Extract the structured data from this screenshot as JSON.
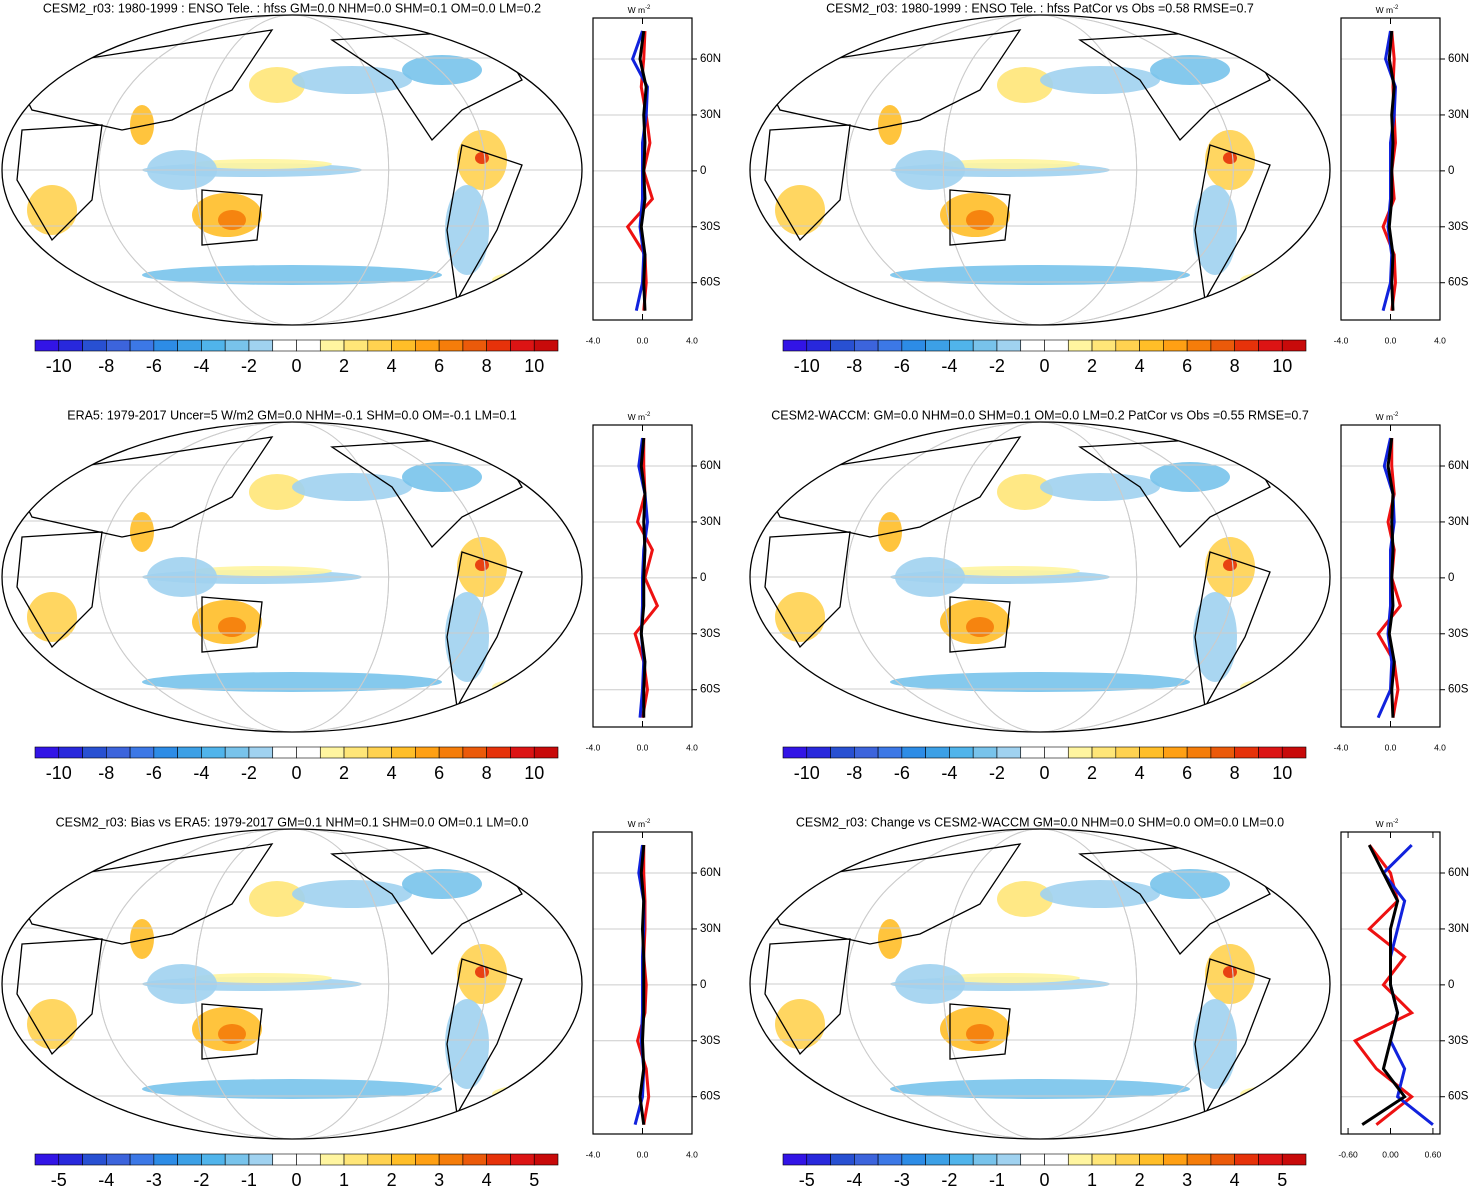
{
  "colorbars": {
    "wide": {
      "lim": [
        -11,
        11
      ],
      "labels": [
        -10,
        -8,
        -6,
        -4,
        -2,
        0,
        2,
        4,
        6,
        8,
        10
      ]
    },
    "narrow": {
      "lim": [
        -5.5,
        5.5
      ],
      "labels": [
        -5,
        -4,
        -3,
        -2,
        -1,
        0,
        1,
        2,
        3,
        4,
        5
      ]
    },
    "colors": [
      "#3214e6",
      "#2828dc",
      "#2850d2",
      "#3c64dc",
      "#3c78e6",
      "#2d8ce6",
      "#3ca0e6",
      "#50b4eb",
      "#78c3eb",
      "#a0d2f0",
      "#ffffff",
      "#ffffff",
      "#fff5a0",
      "#ffe678",
      "#ffd250",
      "#ffbe28",
      "#ffa014",
      "#f57d0a",
      "#eb5a0a",
      "#e6320a",
      "#dc1414",
      "#c80a0a"
    ]
  },
  "zonal_units": "W m",
  "zonal_units_sup": "-2",
  "panels": [
    {
      "title": "CESM2_r03: 1980-1999 : ENSO Tele. : hfss GM=0.0 NHM=0.0 SHM=0.1 OM=0.0 LM=0.2",
      "colorbar": "wide",
      "zonal": {
        "xlim": [
          -4,
          4
        ],
        "xticks": [
          {
            "value": -4,
            "label": "-4.0"
          },
          {
            "value": 0,
            "label": "0.0"
          },
          {
            "value": 4,
            "label": "4.0"
          }
        ],
        "ylim": [
          -80,
          82
        ],
        "yticks": [
          {
            "value": 60,
            "label": "60N"
          },
          {
            "value": 30,
            "label": "30N"
          },
          0,
          {
            "value": -30,
            "label": "30S"
          },
          {
            "value": -60,
            "label": "60S"
          }
        ],
        "lat": [
          -75,
          -60,
          -45,
          -30,
          -15,
          0,
          15,
          30,
          45,
          60,
          75
        ],
        "series": [
          {
            "color": "#ee1111",
            "values": [
              0.1,
              0.3,
              0.2,
              -1.2,
              0.8,
              0.1,
              0.6,
              0.3,
              -0.1,
              0.1,
              0.2
            ]
          },
          {
            "color": "#1122dd",
            "values": [
              -0.5,
              0.0,
              0.1,
              -0.2,
              0.0,
              0.0,
              0.0,
              0.3,
              0.4,
              -0.8,
              0.0
            ]
          },
          {
            "color": "#000000",
            "values": [
              0.2,
              0.1,
              0.2,
              -0.1,
              0.2,
              0.1,
              0.2,
              0.1,
              0.3,
              -0.2,
              0.1
            ]
          }
        ]
      }
    },
    {
      "title": "CESM2_r03: 1980-1999 : ENSO Tele. : hfss PatCor vs Obs =0.58 RMSE=0.7",
      "colorbar": "wide",
      "zonal": {
        "xlim": [
          -4,
          4
        ],
        "xticks": [
          {
            "value": -4,
            "label": "-4.0"
          },
          {
            "value": 0,
            "label": "0.0"
          },
          {
            "value": 4,
            "label": "4.0"
          }
        ],
        "ylim": [
          -80,
          82
        ],
        "yticks": [
          {
            "value": 60,
            "label": "60N"
          },
          {
            "value": 30,
            "label": "30N"
          },
          0,
          {
            "value": -30,
            "label": "30S"
          },
          {
            "value": -60,
            "label": "60S"
          }
        ],
        "lat": [
          -75,
          -60,
          -45,
          -30,
          -15,
          0,
          15,
          30,
          45,
          60,
          75
        ],
        "series": [
          {
            "color": "#ee1111",
            "values": [
              0.1,
              0.4,
              0.3,
              -0.6,
              0.3,
              0.1,
              0.4,
              0.3,
              0.2,
              0.3,
              0.1
            ]
          },
          {
            "color": "#1122dd",
            "values": [
              -0.6,
              0.0,
              0.1,
              -0.2,
              0.0,
              0.0,
              0.0,
              0.3,
              0.4,
              -0.4,
              0.0
            ]
          },
          {
            "color": "#000000",
            "values": [
              0.2,
              0.1,
              0.2,
              -0.1,
              0.1,
              0.1,
              0.2,
              0.1,
              0.3,
              -0.1,
              0.1
            ]
          }
        ]
      }
    },
    {
      "title": "ERA5: 1979-2017 Uncer=5 W/m2 GM=0.0 NHM=-0.1 SHM=0.0 OM=-0.1 LM=0.1",
      "colorbar": "wide",
      "zonal": {
        "xlim": [
          -4,
          4
        ],
        "xticks": [
          {
            "value": -4,
            "label": "-4.0"
          },
          {
            "value": 0,
            "label": "0.0"
          },
          {
            "value": 4,
            "label": "4.0"
          }
        ],
        "ylim": [
          -80,
          82
        ],
        "yticks": [
          {
            "value": 60,
            "label": "60N"
          },
          {
            "value": 30,
            "label": "30N"
          },
          0,
          {
            "value": -30,
            "label": "30S"
          },
          {
            "value": -60,
            "label": "60S"
          }
        ],
        "lat": [
          -75,
          -60,
          -45,
          -30,
          -15,
          0,
          15,
          30,
          45,
          60,
          75
        ],
        "series": [
          {
            "color": "#ee1111",
            "values": [
              0.0,
              0.4,
              0.1,
              -0.6,
              1.2,
              0.2,
              0.8,
              -0.4,
              0.2,
              0.1,
              0.1
            ]
          },
          {
            "color": "#1122dd",
            "values": [
              -0.2,
              0.0,
              0.1,
              -0.1,
              0.0,
              0.0,
              0.1,
              0.4,
              0.2,
              -0.3,
              0.0
            ]
          },
          {
            "color": "#000000",
            "values": [
              0.1,
              0.1,
              0.2,
              -0.1,
              0.1,
              0.1,
              0.2,
              0.1,
              0.2,
              -0.1,
              0.1
            ]
          }
        ]
      }
    },
    {
      "title": "CESM2-WACCM: GM=0.0 NHM=0.0 SHM=0.1 OM=0.0 LM=0.2 PatCor vs Obs =0.55 RMSE=0.7",
      "colorbar": "wide",
      "zonal": {
        "xlim": [
          -4,
          4
        ],
        "xticks": [
          {
            "value": -4,
            "label": "-4.0"
          },
          {
            "value": 0,
            "label": "0.0"
          },
          {
            "value": 4,
            "label": "4.0"
          }
        ],
        "ylim": [
          -80,
          82
        ],
        "yticks": [
          {
            "value": 60,
            "label": "60N"
          },
          {
            "value": 30,
            "label": "30N"
          },
          0,
          {
            "value": -30,
            "label": "30S"
          },
          {
            "value": -60,
            "label": "60S"
          }
        ],
        "lat": [
          -75,
          -60,
          -45,
          -30,
          -15,
          0,
          15,
          30,
          45,
          60,
          75
        ],
        "series": [
          {
            "color": "#ee1111",
            "values": [
              0.2,
              0.6,
              0.3,
              -1.0,
              0.8,
              0.1,
              0.3,
              -0.2,
              0.3,
              0.1,
              0.1
            ]
          },
          {
            "color": "#1122dd",
            "values": [
              -1.0,
              0.0,
              0.1,
              -0.2,
              0.0,
              0.0,
              0.0,
              0.3,
              0.2,
              -0.5,
              0.0
            ]
          },
          {
            "color": "#000000",
            "values": [
              0.2,
              0.1,
              0.3,
              -0.1,
              0.2,
              0.1,
              0.2,
              0.1,
              0.2,
              -0.2,
              0.1
            ]
          }
        ]
      }
    },
    {
      "title": "CESM2_r03: Bias vs ERA5: 1979-2017 GM=0.1 NHM=0.1 SHM=0.0 OM=0.1 LM=0.0",
      "colorbar": "narrow",
      "zonal": {
        "xlim": [
          -4,
          4
        ],
        "xticks": [
          {
            "value": -4,
            "label": "-4.0"
          },
          {
            "value": 0,
            "label": "0.0"
          },
          {
            "value": 4,
            "label": "4.0"
          }
        ],
        "ylim": [
          -80,
          82
        ],
        "yticks": [
          {
            "value": 60,
            "label": "60N"
          },
          {
            "value": 30,
            "label": "30N"
          },
          0,
          {
            "value": -30,
            "label": "30S"
          },
          {
            "value": -60,
            "label": "60S"
          }
        ],
        "lat": [
          -75,
          -60,
          -45,
          -30,
          -15,
          0,
          15,
          30,
          45,
          60,
          75
        ],
        "series": [
          {
            "color": "#ee1111",
            "values": [
              0.1,
              0.5,
              0.3,
              -0.4,
              0.2,
              0.3,
              0.1,
              0.2,
              0.2,
              0.1,
              0.1
            ]
          },
          {
            "color": "#1122dd",
            "values": [
              -0.6,
              0.0,
              0.1,
              -0.1,
              0.0,
              0.0,
              0.0,
              0.1,
              0.1,
              -0.3,
              0.0
            ]
          },
          {
            "color": "#000000",
            "values": [
              0.1,
              -0.2,
              0.1,
              0.0,
              0.1,
              0.1,
              0.1,
              0.0,
              0.1,
              -0.1,
              0.1
            ]
          }
        ]
      }
    },
    {
      "title": "CESM2_r03: Change vs CESM2-WACCM GM=0.0 NHM=0.0 SHM=0.0 OM=0.0 LM=0.0",
      "colorbar": "narrow",
      "zonal": {
        "xlim": [
          -0.7,
          0.7
        ],
        "xticks": [
          {
            "value": -0.6,
            "label": "-0.60"
          },
          {
            "value": 0,
            "label": "0.00"
          },
          {
            "value": 0.6,
            "label": "0.60"
          }
        ],
        "ylim": [
          -80,
          82
        ],
        "yticks": [
          {
            "value": 60,
            "label": "60N"
          },
          {
            "value": 30,
            "label": "30N"
          },
          0,
          {
            "value": -30,
            "label": "30S"
          },
          {
            "value": -60,
            "label": "60S"
          }
        ],
        "lat": [
          -75,
          -60,
          -45,
          -30,
          -15,
          0,
          15,
          30,
          45,
          60,
          75
        ],
        "series": [
          {
            "color": "#ee1111",
            "values": [
              -0.2,
              0.3,
              -0.2,
              -0.5,
              0.3,
              -0.1,
              0.2,
              -0.3,
              0.1,
              0.0,
              -0.3
            ]
          },
          {
            "color": "#1122dd",
            "values": [
              0.6,
              0.1,
              0.2,
              0.0,
              0.1,
              0.0,
              0.0,
              0.1,
              0.2,
              -0.1,
              0.3
            ]
          },
          {
            "color": "#000000",
            "values": [
              -0.4,
              0.2,
              -0.1,
              0.0,
              0.1,
              0.0,
              0.0,
              0.0,
              0.1,
              -0.1,
              -0.3
            ]
          }
        ]
      }
    }
  ]
}
